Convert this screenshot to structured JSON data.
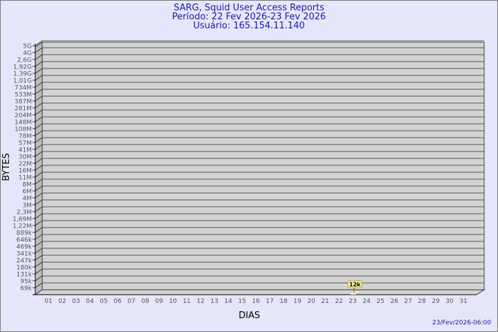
{
  "chart_data": {
    "type": "bar",
    "title": "SARG, Squid User Access Reports",
    "subtitle": "Período: 22 Fev 2026-23 Fev 2026",
    "subtitle2": "Usuário: 165.154.11.140",
    "xlabel": "DIAS",
    "ylabel": "BYTES",
    "footer": "23/Fev/2026-06:00",
    "y_scale": "log",
    "grid": true,
    "yticks": [
      "5G",
      "4G",
      "2,6G",
      "1,92G",
      "1,39G",
      "1,01G",
      "734M",
      "533M",
      "387M",
      "281M",
      "204M",
      "148M",
      "108M",
      "78M",
      "57M",
      "41M",
      "30M",
      "22M",
      "16M",
      "11M",
      "8M",
      "6M",
      "4M",
      "3M",
      "2,3M",
      "1,69M",
      "1,22M",
      "889k",
      "646k",
      "469k",
      "341k",
      "247k",
      "180k",
      "131k",
      "95k",
      "69k"
    ],
    "categories": [
      "01",
      "02",
      "03",
      "04",
      "05",
      "06",
      "07",
      "08",
      "09",
      "10",
      "11",
      "12",
      "13",
      "14",
      "15",
      "16",
      "17",
      "18",
      "19",
      "20",
      "21",
      "22",
      "23",
      "24",
      "25",
      "26",
      "27",
      "28",
      "29",
      "30",
      "31"
    ],
    "bars": [
      {
        "x": "23",
        "value": "12k"
      }
    ],
    "colors": {
      "bar": "#f5e6a0",
      "label_bg": "#f8f0a8",
      "label_border": "#c8a820",
      "title": "#1a1aa0",
      "wall": "#d3d3d3"
    }
  }
}
